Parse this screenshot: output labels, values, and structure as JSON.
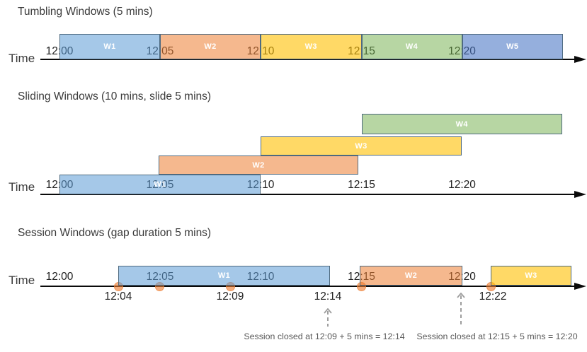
{
  "colors": {
    "blue": "#5B9BD5",
    "orange": "#ED7D31",
    "yellow": "#FFC000",
    "green": "#70AD47",
    "indigo": "#4472C4",
    "bar_border": "#4E6A80",
    "dot_fill": "#ED7D31",
    "axis": "#0a0a0a",
    "title_text": "#3a3a3a",
    "tick_text": "#212121",
    "annotation_text": "#595959",
    "dashed_arrow_gray": "#9e9e9e"
  },
  "diagrams": [
    {
      "title": "Tumbling Windows (5 mins)",
      "axis_label": "Time",
      "ticks": [
        "12:00",
        "12:05",
        "12:10",
        "12:15",
        "12:20"
      ],
      "windows": [
        {
          "label": "W1",
          "start": "12:00",
          "end": "12:05",
          "color": "blue"
        },
        {
          "label": "W2",
          "start": "12:05",
          "end": "12:10",
          "color": "orange"
        },
        {
          "label": "W3",
          "start": "12:10",
          "end": "12:15",
          "color": "yellow"
        },
        {
          "label": "W4",
          "start": "12:15",
          "end": "12:20",
          "color": "green"
        },
        {
          "label": "W5",
          "start": "12:20",
          "end": "12:25",
          "color": "indigo"
        }
      ]
    },
    {
      "title": "Sliding Windows (10 mins, slide 5 mins)",
      "axis_label": "Time",
      "ticks": [
        "12:00",
        "12:05",
        "12:10",
        "12:15",
        "12:20"
      ],
      "windows": [
        {
          "label": "W1",
          "start": "12:00",
          "end": "12:10",
          "color": "blue"
        },
        {
          "label": "W2",
          "start": "12:05",
          "end": "12:15",
          "color": "orange"
        },
        {
          "label": "W3",
          "start": "12:10",
          "end": "12:20",
          "color": "yellow"
        },
        {
          "label": "W4",
          "start": "12:15",
          "end": "12:25",
          "color": "green"
        }
      ]
    },
    {
      "title": "Session Windows (gap duration 5 mins)",
      "axis_label": "Time",
      "ticks": [
        "12:00",
        "12:05",
        "12:10",
        "12:15",
        "12:20"
      ],
      "windows": [
        {
          "label": "W1",
          "start": "12:04",
          "end": "12:14",
          "color": "blue"
        },
        {
          "label": "W2",
          "start": "12:15",
          "end": "12:20",
          "color": "orange"
        },
        {
          "label": "W3",
          "start": "12:22",
          "end": "",
          "color": "yellow"
        }
      ],
      "events": [
        "12:04",
        "12:05",
        "12:09",
        "12:15",
        "12:22"
      ],
      "event_labels": [
        "12:04",
        "12:09",
        "12:14",
        "12:22"
      ],
      "annotations": [
        "Session closed at 12:09 + 5 mins = 12:14",
        "Session closed at 12:15 + 5 mins = 12:20"
      ]
    }
  ]
}
